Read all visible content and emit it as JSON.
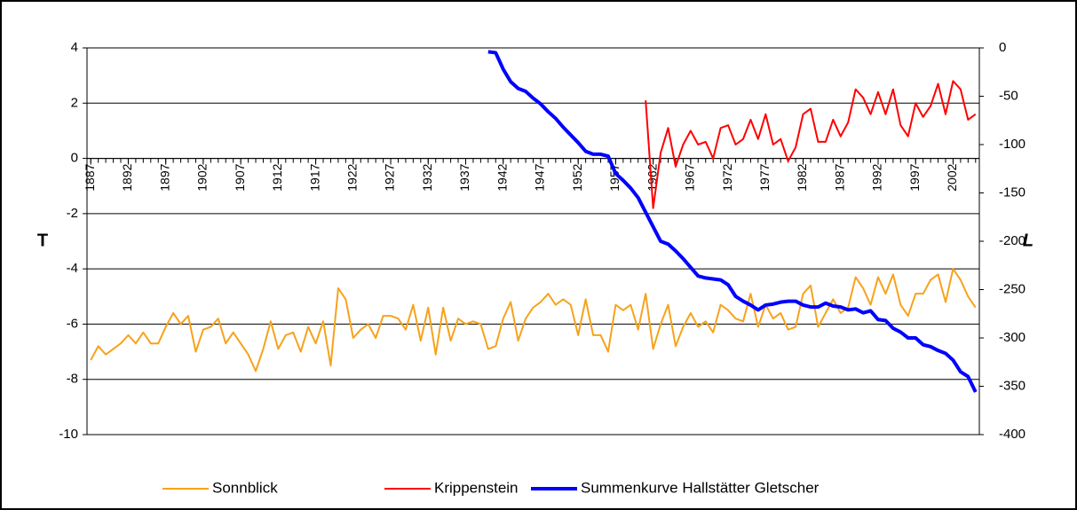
{
  "chart_data": {
    "type": "line",
    "ylabel": "T",
    "y2label": "L",
    "x": [
      1887,
      1888,
      1889,
      1890,
      1891,
      1892,
      1893,
      1894,
      1895,
      1896,
      1897,
      1898,
      1899,
      1900,
      1901,
      1902,
      1903,
      1904,
      1905,
      1906,
      1907,
      1908,
      1909,
      1910,
      1911,
      1912,
      1913,
      1914,
      1915,
      1916,
      1917,
      1918,
      1919,
      1920,
      1921,
      1922,
      1923,
      1924,
      1925,
      1926,
      1927,
      1928,
      1929,
      1930,
      1931,
      1932,
      1933,
      1934,
      1935,
      1936,
      1937,
      1938,
      1939,
      1940,
      1941,
      1942,
      1943,
      1944,
      1945,
      1946,
      1947,
      1948,
      1949,
      1950,
      1951,
      1952,
      1953,
      1954,
      1955,
      1956,
      1957,
      1958,
      1959,
      1960,
      1961,
      1962,
      1963,
      1964,
      1965,
      1966,
      1967,
      1968,
      1969,
      1970,
      1971,
      1972,
      1973,
      1974,
      1975,
      1976,
      1977,
      1978,
      1979,
      1980,
      1981,
      1982,
      1983,
      1984,
      1985,
      1986,
      1987,
      1988,
      1989,
      1990,
      1991,
      1992,
      1993,
      1994,
      1995,
      1996,
      1997,
      1998,
      1999,
      2000,
      2001,
      2002,
      2003,
      2004,
      2005
    ],
    "xlim": [
      1886.5,
      2005.5
    ],
    "xticks": [
      1887,
      1892,
      1897,
      1902,
      1907,
      1912,
      1917,
      1922,
      1927,
      1932,
      1937,
      1942,
      1947,
      1952,
      1957,
      1962,
      1967,
      1972,
      1977,
      1982,
      1987,
      1992,
      1997,
      2002
    ],
    "ylim": [
      -10,
      4
    ],
    "yticks": [
      -10,
      -8,
      -6,
      -4,
      -2,
      0,
      2,
      4
    ],
    "y2lim": [
      -400,
      0
    ],
    "y2ticks": [
      -400,
      -350,
      -300,
      -250,
      -200,
      -150,
      -100,
      -50,
      0
    ],
    "grid": true,
    "legend": "bottom",
    "series": [
      {
        "name": "Sonnblick",
        "color": "#f7a21b",
        "width": 2,
        "values": [
          -7.3,
          -6.8,
          -7.1,
          -6.9,
          -6.7,
          -6.4,
          -6.7,
          -6.3,
          -6.7,
          -6.7,
          -6.1,
          -5.6,
          -6.0,
          -5.7,
          -7.0,
          -6.2,
          -6.1,
          -5.8,
          -6.7,
          -6.3,
          -6.7,
          -7.1,
          -7.7,
          -6.9,
          -5.9,
          -6.9,
          -6.4,
          -6.3,
          -7.0,
          -6.1,
          -6.7,
          -5.9,
          -7.5,
          -4.7,
          -5.1,
          -6.5,
          -6.2,
          -6.0,
          -6.5,
          -5.7,
          -5.7,
          -5.8,
          -6.2,
          -5.3,
          -6.6,
          -5.4,
          -7.1,
          -5.4,
          -6.6,
          -5.8,
          -6.0,
          -5.9,
          -6.0,
          -6.9,
          -6.8,
          -5.8,
          -5.2,
          -6.6,
          -5.8,
          -5.4,
          -5.2,
          -4.9,
          -5.3,
          -5.1,
          -5.3,
          -6.4,
          -5.1,
          -6.4,
          -6.4,
          -7.0,
          -5.3,
          -5.5,
          -5.3,
          -6.2,
          -4.9,
          -6.9,
          -6.0,
          -5.3,
          -6.8,
          -6.1,
          -5.6,
          -6.1,
          -5.9,
          -6.3,
          -5.3,
          -5.5,
          -5.8,
          -5.9,
          -4.9,
          -6.1,
          -5.3,
          -5.8,
          -5.6,
          -6.2,
          -6.1,
          -4.9,
          -4.6,
          -6.1,
          -5.6,
          -5.1,
          -5.6,
          -5.4,
          -4.3,
          -4.7,
          -5.3,
          -4.3,
          -4.9,
          -4.2,
          -5.3,
          -5.7,
          -4.9,
          -4.9,
          -4.4,
          -4.2,
          -5.2,
          -4.0,
          -4.4,
          -5.0,
          -5.4
        ]
      },
      {
        "name": "Krippenstein",
        "color": "#ff0000",
        "width": 2,
        "values": [
          null,
          null,
          null,
          null,
          null,
          null,
          null,
          null,
          null,
          null,
          null,
          null,
          null,
          null,
          null,
          null,
          null,
          null,
          null,
          null,
          null,
          null,
          null,
          null,
          null,
          null,
          null,
          null,
          null,
          null,
          null,
          null,
          null,
          null,
          null,
          null,
          null,
          null,
          null,
          null,
          null,
          null,
          null,
          null,
          null,
          null,
          null,
          null,
          null,
          null,
          null,
          null,
          null,
          null,
          null,
          null,
          null,
          null,
          null,
          null,
          null,
          null,
          null,
          null,
          null,
          null,
          null,
          null,
          null,
          null,
          null,
          null,
          null,
          null,
          2.1,
          -1.8,
          0.2,
          1.1,
          -0.3,
          0.5,
          1.0,
          0.5,
          0.6,
          0.0,
          1.1,
          1.2,
          0.5,
          0.7,
          1.4,
          0.7,
          1.6,
          0.5,
          0.7,
          -0.1,
          0.4,
          1.6,
          1.8,
          0.6,
          0.6,
          1.4,
          0.8,
          1.3,
          2.5,
          2.2,
          1.6,
          2.4,
          1.6,
          2.5,
          1.2,
          0.8,
          2.0,
          1.5,
          1.9,
          2.7,
          1.6,
          2.8,
          2.5,
          1.4,
          1.6
        ]
      },
      {
        "name": "Summenkurve Hallstätter Gletscher",
        "color": "#0000ff",
        "width": 4,
        "axis": "y2",
        "values": [
          null,
          null,
          null,
          null,
          null,
          null,
          null,
          null,
          null,
          null,
          null,
          null,
          null,
          null,
          null,
          null,
          null,
          null,
          null,
          null,
          null,
          null,
          null,
          null,
          null,
          null,
          null,
          null,
          null,
          null,
          null,
          null,
          null,
          null,
          null,
          null,
          null,
          null,
          null,
          null,
          null,
          null,
          null,
          null,
          null,
          null,
          null,
          null,
          null,
          null,
          null,
          null,
          null,
          -4,
          -5,
          -22,
          -35,
          -42,
          -45,
          -52,
          -58,
          -66,
          -73,
          -82,
          -90,
          -98,
          -107,
          -110,
          -110,
          -112,
          -130,
          -137,
          -145,
          -155,
          -170,
          -185,
          -200,
          -203,
          -210,
          -218,
          -227,
          -236,
          -238,
          -239,
          -240,
          -245,
          -257,
          -262,
          -266,
          -271,
          -266,
          -265,
          -263,
          -262,
          -262,
          -266,
          -268,
          -268,
          -264,
          -267,
          -268,
          -271,
          -270,
          -274,
          -272,
          -281,
          -282,
          -290,
          -294,
          -300,
          -300,
          -307,
          -309,
          -313,
          -316,
          -323,
          -335,
          -340,
          -356
        ]
      }
    ]
  }
}
